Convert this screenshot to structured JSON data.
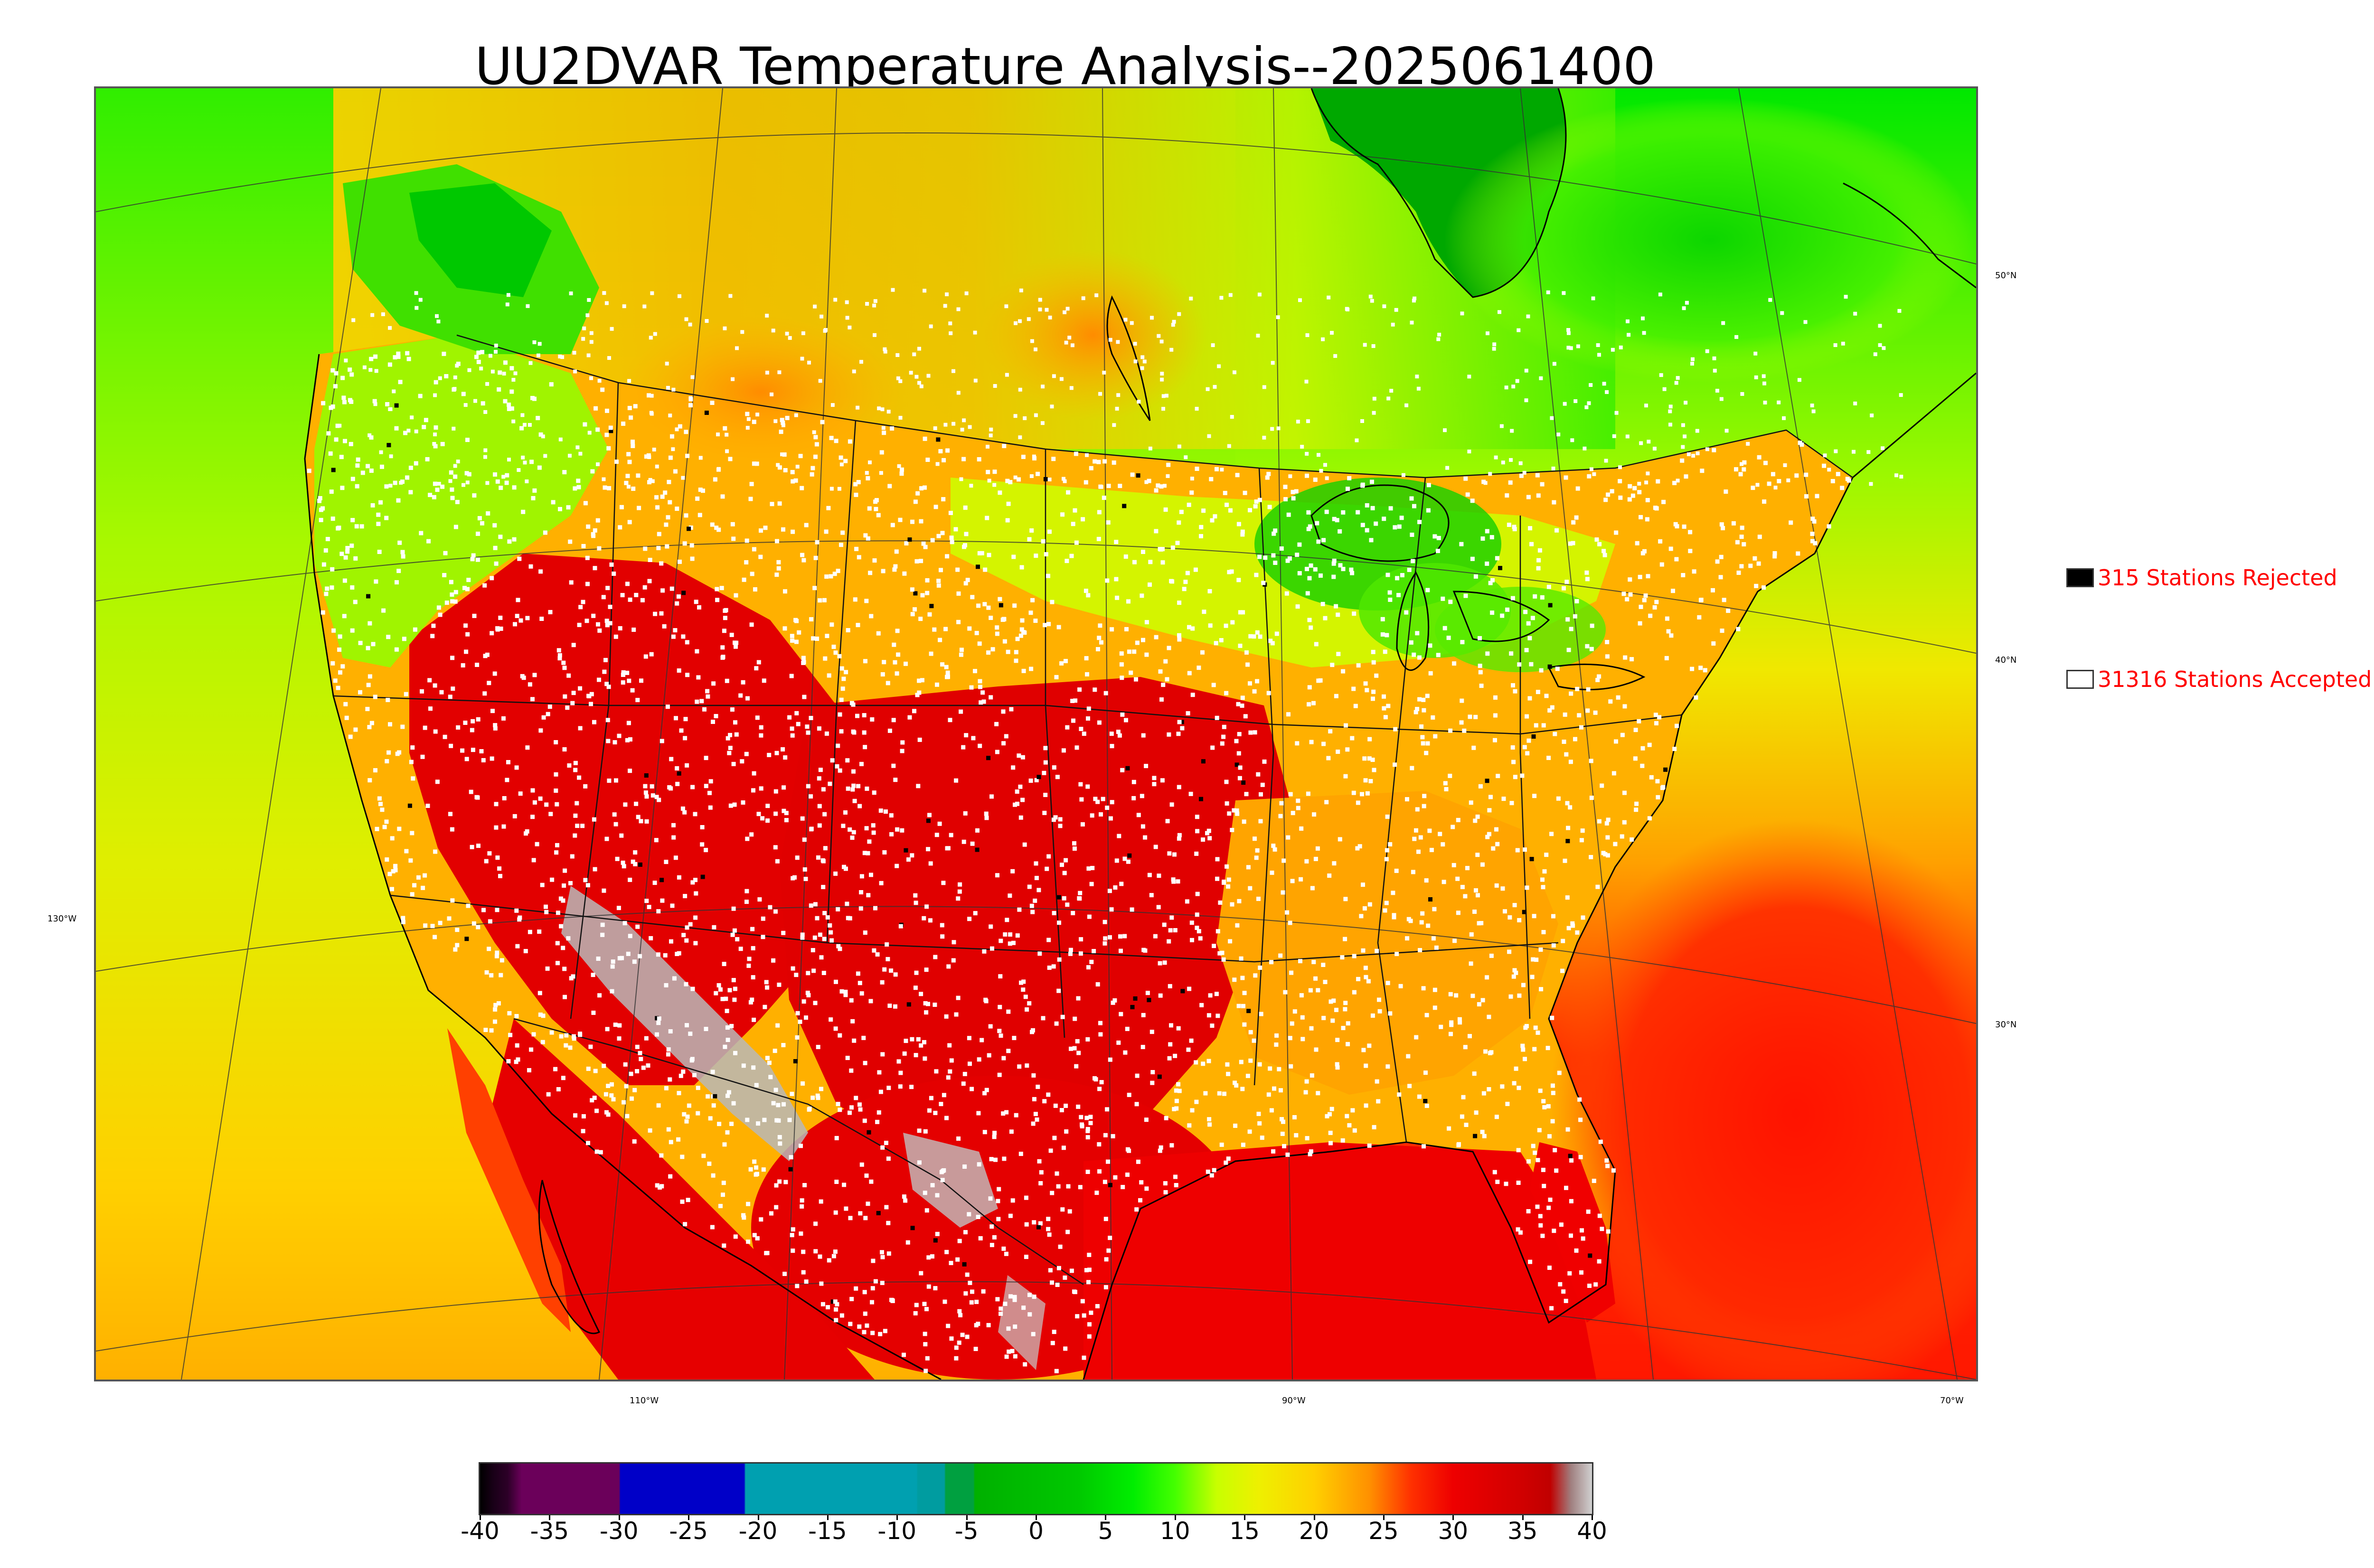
{
  "title": "UU2DVAR Temperature Analysis--2025061400",
  "legend": {
    "rejected": {
      "label": "315 Stations Rejected",
      "color": "#000000",
      "count": 315
    },
    "accepted": {
      "label": "31316 Stations Accepted",
      "color": "#ffffff",
      "count": 31316
    }
  },
  "map": {
    "lat_labels": [
      {
        "text": "50°N"
      },
      {
        "text": "40°N"
      },
      {
        "text": "30°N"
      }
    ],
    "lon_labels": [
      {
        "text": "130°W"
      },
      {
        "text": "110°W"
      },
      {
        "text": "90°W"
      },
      {
        "text": "70°W"
      }
    ]
  },
  "colorbar": {
    "min": -40,
    "max": 40,
    "ticks": [
      -40,
      -35,
      -30,
      -25,
      -20,
      -15,
      -10,
      -5,
      0,
      5,
      10,
      15,
      20,
      25,
      30,
      35,
      40
    ],
    "tick_labels": [
      "-40",
      "-35",
      "-30",
      "-25",
      "-20",
      "-15",
      "-10",
      "-5",
      "0",
      "5",
      "10",
      "15",
      "20",
      "25",
      "30",
      "35",
      "40"
    ],
    "stops": [
      {
        "v": -40,
        "color": "#000000"
      },
      {
        "v": -39,
        "color": "#1a0018"
      },
      {
        "v": -38,
        "color": "#2d0028"
      },
      {
        "v": -37,
        "color": "#6b005a"
      },
      {
        "v": -30,
        "color": "#6b005a"
      },
      {
        "v": -29.9,
        "color": "#0000c8"
      },
      {
        "v": -21,
        "color": "#0000c8"
      },
      {
        "v": -20.9,
        "color": "#00a0b0"
      },
      {
        "v": -8.6,
        "color": "#00a0b0"
      },
      {
        "v": -8.5,
        "color": "#009ca0"
      },
      {
        "v": -6.6,
        "color": "#009ca0"
      },
      {
        "v": -6.5,
        "color": "#00a040"
      },
      {
        "v": -4.5,
        "color": "#00a040"
      },
      {
        "v": -4.4,
        "color": "#00b000"
      },
      {
        "v": 3,
        "color": "#00c800"
      },
      {
        "v": 7,
        "color": "#00ee00"
      },
      {
        "v": 10,
        "color": "#44ff00"
      },
      {
        "v": 13,
        "color": "#c8ff00"
      },
      {
        "v": 16,
        "color": "#eef000"
      },
      {
        "v": 20,
        "color": "#ffd000"
      },
      {
        "v": 24,
        "color": "#ff9000"
      },
      {
        "v": 27,
        "color": "#ff3000"
      },
      {
        "v": 30,
        "color": "#ee0000"
      },
      {
        "v": 35,
        "color": "#d00000"
      },
      {
        "v": 37,
        "color": "#c00000"
      },
      {
        "v": 38.5,
        "color": "#a08080"
      },
      {
        "v": 40,
        "color": "#d0d0d0"
      }
    ]
  },
  "palette": {
    "ocean_warm": "#ff2a00",
    "ocean_mid": "#ffb400",
    "ocean_cool": "#d8f000",
    "land_hot": "#e00000",
    "land_warm": "#ffa800",
    "land_mild": "#e8f000",
    "land_cool": "#30f000",
    "land_cold": "#00b000",
    "terrain_gray": "#b8b8b8",
    "station_accepted": "#ffffff",
    "station_rejected": "#000000"
  }
}
